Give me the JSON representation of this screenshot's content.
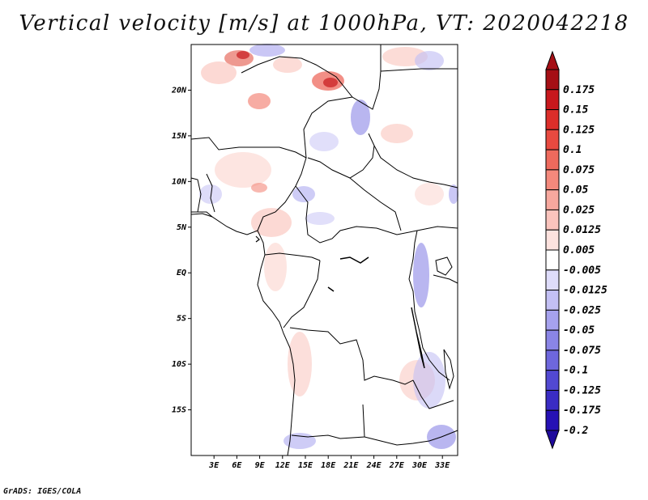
{
  "title": "Vertical velocity [m/s] at 1000hPa, VT: 2020042218",
  "credit": "GrADS: IGES/COLA",
  "map": {
    "region": "West/Central Africa",
    "lat_range": [
      -20,
      25
    ],
    "lon_range": [
      0,
      35
    ],
    "lat_ticks": [
      {
        "value": 20,
        "label": "20N"
      },
      {
        "value": 15,
        "label": "15N"
      },
      {
        "value": 10,
        "label": "10N"
      },
      {
        "value": 5,
        "label": "5N"
      },
      {
        "value": 0,
        "label": "EQ"
      },
      {
        "value": -5,
        "label": "5S"
      },
      {
        "value": -10,
        "label": "10S"
      },
      {
        "value": -15,
        "label": "15S"
      }
    ],
    "lon_ticks": [
      {
        "value": 3,
        "label": "3E"
      },
      {
        "value": 6,
        "label": "6E"
      },
      {
        "value": 9,
        "label": "9E"
      },
      {
        "value": 12,
        "label": "12E"
      },
      {
        "value": 15,
        "label": "15E"
      },
      {
        "value": 18,
        "label": "18E"
      },
      {
        "value": 21,
        "label": "21E"
      },
      {
        "value": 24,
        "label": "24E"
      },
      {
        "value": 27,
        "label": "27E"
      },
      {
        "value": 30,
        "label": "30E"
      },
      {
        "value": 33,
        "label": "33E"
      }
    ]
  },
  "colorbar": {
    "levels": [
      {
        "label": "0.175",
        "color": "#a50f15"
      },
      {
        "label": "0.15",
        "color": "#c8181d"
      },
      {
        "label": "0.125",
        "color": "#dc2e2a"
      },
      {
        "label": "0.1",
        "color": "#e84a40"
      },
      {
        "label": "0.075",
        "color": "#ee6a5d"
      },
      {
        "label": "0.05",
        "color": "#f4897c"
      },
      {
        "label": "0.025",
        "color": "#f7a89e"
      },
      {
        "label": "0.0125",
        "color": "#fac4bd"
      },
      {
        "label": "0.005",
        "color": "#fde2de"
      },
      {
        "label": "-0.005",
        "color": "#ffffff"
      },
      {
        "label": "-0.0125",
        "color": "#dedcfa"
      },
      {
        "label": "-0.025",
        "color": "#c3c0f4"
      },
      {
        "label": "-0.05",
        "color": "#a6a2ee"
      },
      {
        "label": "-0.075",
        "color": "#8a85e6"
      },
      {
        "label": "-0.1",
        "color": "#6e67dd"
      },
      {
        "label": "-0.125",
        "color": "#5249d2"
      },
      {
        "label": "-0.175",
        "color": "#3a2cc4"
      },
      {
        "label": "-0.2",
        "color": "#2611b5"
      }
    ],
    "top_color": "#a50f15",
    "bottom_color": "#1f0a9c"
  }
}
